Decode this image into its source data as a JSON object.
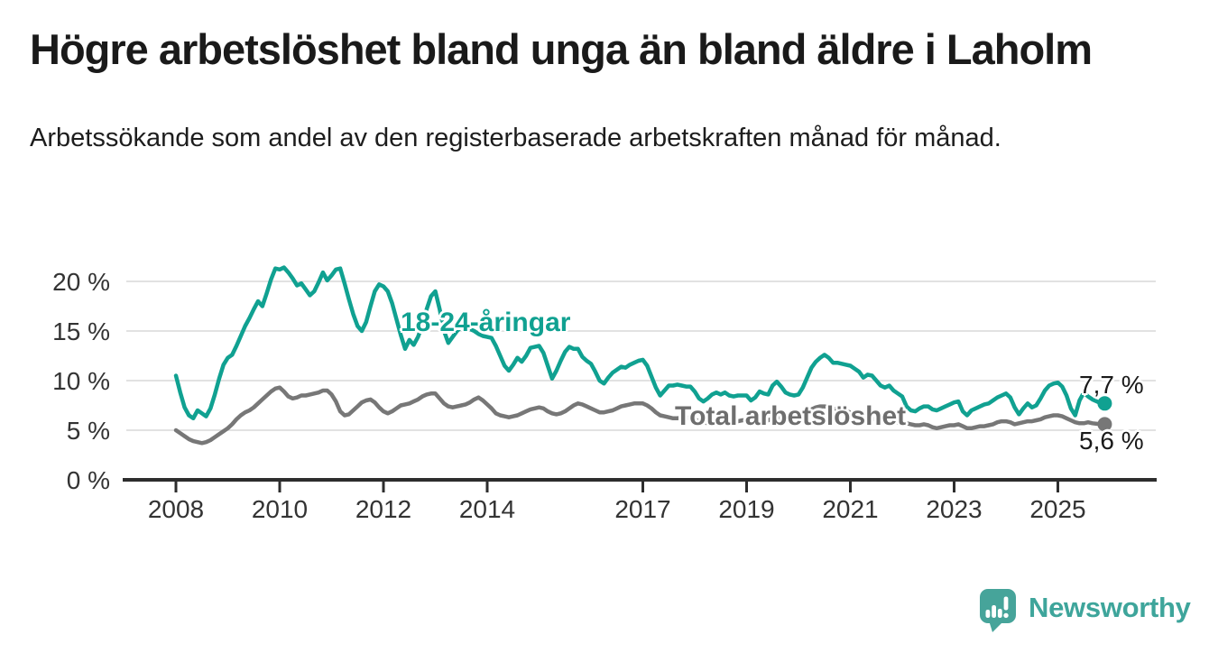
{
  "header": {
    "title": "Högre arbetslöshet bland unga än bland äldre i Laholm",
    "subtitle": "Arbetssökande som andel av den registerbaserade arbetskraften månad för månad."
  },
  "chart_data": {
    "type": "line",
    "unit": "%",
    "frequency": "monthly",
    "x_start": "2008-01",
    "x_end": "2025-11",
    "ylim": [
      0,
      22
    ],
    "grid": "horizontal",
    "yticks": [
      0,
      5,
      10,
      15,
      20
    ],
    "ytick_labels": [
      "0 %",
      "5 %",
      "10 %",
      "15 %",
      "20 %"
    ],
    "xticks": [
      2008,
      2010,
      2012,
      2014,
      2017,
      2019,
      2021,
      2023,
      2025
    ],
    "series": [
      {
        "name": "18-24-åringar",
        "color": "#10a191",
        "end_label": "7,7 %",
        "end_value": 7.7,
        "values": [
          10.5,
          8.8,
          7.3,
          6.5,
          6.2,
          7.0,
          6.7,
          6.4,
          7.2,
          8.6,
          10.2,
          11.6,
          12.3,
          12.6,
          13.5,
          14.5,
          15.5,
          16.3,
          17.2,
          18.0,
          17.5,
          18.8,
          20.2,
          21.3,
          21.2,
          21.4,
          20.9,
          20.3,
          19.6,
          19.8,
          19.2,
          18.6,
          19.0,
          19.9,
          20.9,
          20.1,
          20.6,
          21.2,
          21.3,
          19.8,
          18.2,
          16.7,
          15.5,
          15.0,
          15.9,
          17.5,
          19.0,
          19.7,
          19.5,
          19.0,
          17.8,
          16.2,
          14.6,
          13.2,
          14.1,
          13.6,
          14.4,
          15.6,
          17.2,
          18.5,
          19.0,
          17.2,
          15.0,
          13.8,
          14.4,
          15.0,
          15.4,
          15.5,
          15.2,
          15.0,
          14.7,
          14.5,
          14.4,
          14.3,
          13.5,
          12.5,
          11.5,
          11.0,
          11.6,
          12.3,
          11.9,
          12.5,
          13.3,
          13.4,
          13.5,
          12.8,
          11.5,
          10.2,
          11.0,
          12.0,
          12.9,
          13.4,
          13.2,
          13.2,
          12.4,
          12.0,
          11.7,
          10.9,
          10.0,
          9.7,
          10.3,
          10.8,
          11.1,
          11.4,
          11.3,
          11.6,
          11.8,
          12.0,
          12.1,
          11.5,
          10.4,
          9.3,
          8.5,
          9.0,
          9.5,
          9.5,
          9.6,
          9.5,
          9.4,
          9.4,
          8.9,
          8.2,
          7.9,
          8.2,
          8.6,
          8.8,
          8.6,
          8.8,
          8.5,
          8.4,
          8.5,
          8.5,
          8.5,
          8.0,
          8.3,
          8.9,
          8.7,
          8.6,
          9.5,
          9.9,
          9.4,
          8.8,
          8.6,
          8.5,
          8.6,
          9.3,
          10.3,
          11.3,
          11.9,
          12.3,
          12.6,
          12.3,
          11.8,
          11.8,
          11.7,
          11.6,
          11.5,
          11.2,
          10.9,
          10.3,
          10.6,
          10.5,
          10.0,
          9.5,
          9.3,
          9.5,
          9.0,
          8.7,
          8.4,
          7.4,
          7.0,
          6.9,
          7.2,
          7.4,
          7.4,
          7.1,
          7.0,
          7.2,
          7.4,
          7.6,
          7.8,
          7.9,
          6.9,
          6.5,
          7.0,
          7.2,
          7.4,
          7.6,
          7.7,
          8.0,
          8.3,
          8.5,
          8.7,
          8.3,
          7.3,
          6.6,
          7.2,
          7.7,
          7.3,
          7.5,
          8.2,
          9.0,
          9.5,
          9.7,
          9.8,
          9.4,
          8.5,
          7.2,
          6.5,
          8.0,
          8.8,
          8.4,
          8.1,
          7.9,
          7.7
        ]
      },
      {
        "name": "Total arbetslöshet",
        "color": "#777777",
        "end_label": "5,6 %",
        "end_value": 5.6,
        "values": [
          5.0,
          4.7,
          4.4,
          4.1,
          3.9,
          3.8,
          3.7,
          3.8,
          4.0,
          4.3,
          4.6,
          4.9,
          5.2,
          5.6,
          6.1,
          6.5,
          6.8,
          7.0,
          7.3,
          7.7,
          8.1,
          8.5,
          8.9,
          9.2,
          9.3,
          8.9,
          8.4,
          8.2,
          8.3,
          8.5,
          8.5,
          8.6,
          8.7,
          8.8,
          9.0,
          9.0,
          8.6,
          7.9,
          6.9,
          6.5,
          6.6,
          7.0,
          7.4,
          7.8,
          8.0,
          8.1,
          7.8,
          7.3,
          6.9,
          6.7,
          6.9,
          7.2,
          7.5,
          7.6,
          7.7,
          7.9,
          8.1,
          8.4,
          8.6,
          8.7,
          8.7,
          8.2,
          7.7,
          7.4,
          7.3,
          7.4,
          7.5,
          7.6,
          7.8,
          8.1,
          8.3,
          8.0,
          7.6,
          7.2,
          6.7,
          6.5,
          6.4,
          6.3,
          6.4,
          6.5,
          6.7,
          6.9,
          7.1,
          7.2,
          7.3,
          7.2,
          6.9,
          6.7,
          6.6,
          6.7,
          6.9,
          7.2,
          7.5,
          7.7,
          7.6,
          7.4,
          7.2,
          7.0,
          6.8,
          6.8,
          6.9,
          7.0,
          7.2,
          7.4,
          7.5,
          7.6,
          7.7,
          7.7,
          7.7,
          7.5,
          7.2,
          6.8,
          6.5,
          6.4,
          6.3,
          6.2,
          6.2,
          6.3,
          6.3,
          6.2,
          6.1,
          5.9,
          5.8,
          5.7,
          5.7,
          5.8,
          5.9,
          5.9,
          5.8,
          5.8,
          5.9,
          6.0,
          6.0,
          5.9,
          5.8,
          5.8,
          5.9,
          6.0,
          6.2,
          6.3,
          6.2,
          6.1,
          6.1,
          6.2,
          6.3,
          6.4,
          6.8,
          7.1,
          7.3,
          7.4,
          7.4,
          7.3,
          7.2,
          7.1,
          7.0,
          6.9,
          6.8,
          6.7,
          6.6,
          6.4,
          6.3,
          6.2,
          6.0,
          5.9,
          5.8,
          5.7,
          5.7,
          5.8,
          5.8,
          5.7,
          5.6,
          5.5,
          5.5,
          5.6,
          5.5,
          5.3,
          5.2,
          5.3,
          5.4,
          5.5,
          5.5,
          5.6,
          5.4,
          5.2,
          5.2,
          5.3,
          5.4,
          5.4,
          5.5,
          5.6,
          5.8,
          5.9,
          5.9,
          5.8,
          5.6,
          5.7,
          5.8,
          5.9,
          5.9,
          6.0,
          6.1,
          6.3,
          6.4,
          6.5,
          6.5,
          6.4,
          6.2,
          6.0,
          5.8,
          5.7,
          5.7,
          5.8,
          5.7,
          5.65,
          5.6
        ]
      }
    ]
  },
  "colors": {
    "grid": "#d8d8d8",
    "axis": "#2d2d2d",
    "tick_text": "#333333",
    "youth_line": "#10a191",
    "total_line": "#777777",
    "logo": "#46a49a"
  },
  "footer": {
    "brand": "Newsworthy"
  }
}
